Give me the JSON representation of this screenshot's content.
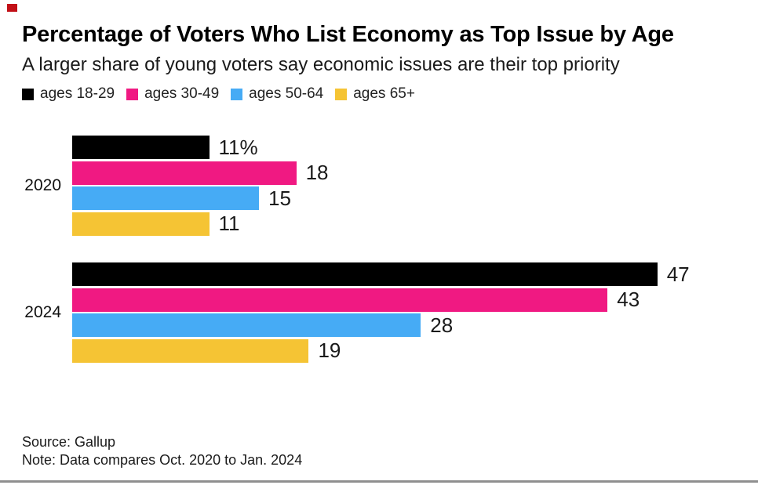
{
  "marker": {
    "color": "#c21017"
  },
  "header": {
    "title": "Percentage of Voters Who List Economy as Top Issue by Age",
    "subtitle": "A larger share of young voters say economic issues are their top priority"
  },
  "legend_items": [
    {
      "label": "ages 18-29",
      "color": "#000000"
    },
    {
      "label": "ages 30-49",
      "color": "#f01982"
    },
    {
      "label": "ages 50-64",
      "color": "#46abf5"
    },
    {
      "label": "ages 65+",
      "color": "#f5c434"
    }
  ],
  "chart_data": {
    "type": "bar",
    "orientation": "horizontal",
    "title": "Percentage of Voters Who List Economy as Top Issue by Age",
    "subtitle": "A larger share of young voters say economic issues are their top priority",
    "value_unit": "percent",
    "xlim": [
      0,
      50
    ],
    "grid": false,
    "legend_position": "top",
    "series": [
      "ages 18-29",
      "ages 30-49",
      "ages 50-64",
      "ages 65+"
    ],
    "series_colors": [
      "#000000",
      "#f01982",
      "#46abf5",
      "#f5c434"
    ],
    "categories": [
      "2020",
      "2024"
    ],
    "groups": [
      {
        "label": "2020",
        "values": [
          11,
          18,
          15,
          11
        ],
        "value_labels": [
          "11%",
          "18",
          "15",
          "11"
        ]
      },
      {
        "label": "2024",
        "values": [
          47,
          43,
          28,
          19
        ],
        "value_labels": [
          "47",
          "43",
          "28",
          "19"
        ]
      }
    ]
  },
  "footer": {
    "source": "Source: Gallup",
    "note": "Note: Data compares Oct. 2020 to Jan. 2024"
  }
}
